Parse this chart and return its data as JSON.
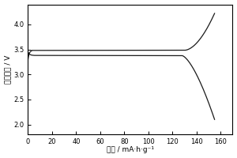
{
  "title": "",
  "xlabel": "容量 / mA·h·g⁻¹",
  "ylabel": "充放电压 / V",
  "xlim": [
    0,
    170
  ],
  "ylim": [
    1.8,
    4.4
  ],
  "xticks": [
    0,
    20,
    40,
    60,
    80,
    100,
    120,
    140,
    160
  ],
  "yticks": [
    2.0,
    2.5,
    3.0,
    3.5,
    4.0
  ],
  "background_color": "#ffffff",
  "line_color": "#1a1a1a",
  "charge_start_v": 3.3,
  "charge_plateau_v": 3.48,
  "charge_end_v": 4.22,
  "charge_cap_end": 155,
  "charge_bend_start": 130,
  "discharge_start_v": 3.45,
  "discharge_plateau_v": 3.38,
  "discharge_end_v": 2.1,
  "discharge_cap_end": 155,
  "discharge_bend_start": 128
}
